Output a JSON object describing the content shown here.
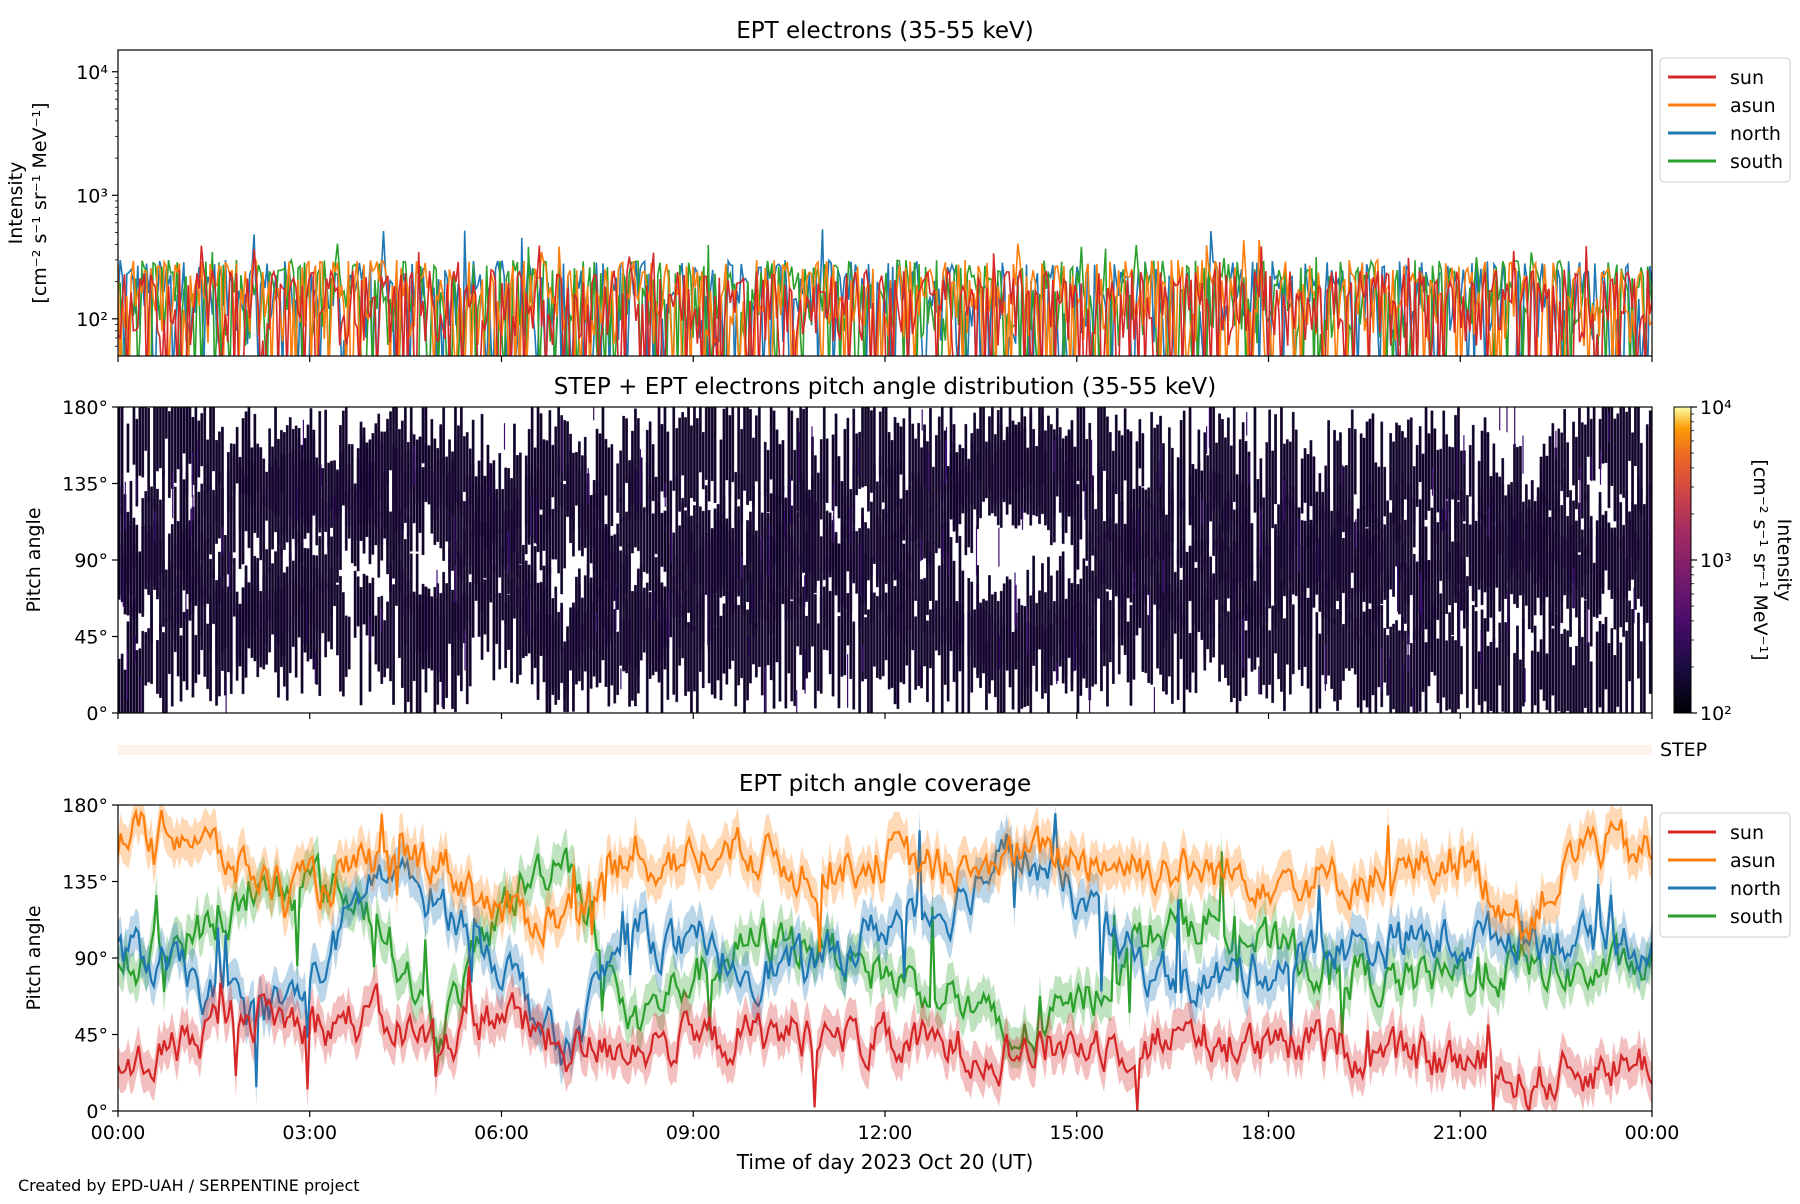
{
  "figure": {
    "credit": "Created by EPD-UAH / SERPENTINE project",
    "xlabel": "Time of day 2023 Oct 20 (UT)",
    "xticks": [
      "00:00",
      "03:00",
      "06:00",
      "09:00",
      "12:00",
      "15:00",
      "18:00",
      "21:00",
      "00:00"
    ]
  },
  "chart_data": [
    {
      "type": "line",
      "title": "EPT electrons (35-55 keV)",
      "ylabel_line1": "Intensity",
      "ylabel_line2": "[cm⁻² s⁻¹ sr⁻¹ MeV⁻¹]",
      "yscale": "log",
      "ylim": [
        50,
        15000
      ],
      "yticks": [
        {
          "label": "10²",
          "value": 100
        },
        {
          "label": "10³",
          "value": 1000
        },
        {
          "label": "10⁴",
          "value": 10000
        }
      ],
      "xlim_hours": [
        0,
        24
      ],
      "legend_position": "outside-right-top",
      "series": [
        {
          "name": "sun",
          "color": "#d62728",
          "typical_range": [
            60,
            250
          ],
          "peak": 400
        },
        {
          "name": "asun",
          "color": "#ff7f0e",
          "typical_range": [
            60,
            300
          ],
          "peak": 450
        },
        {
          "name": "north",
          "color": "#1f77b4",
          "typical_range": [
            60,
            300
          ],
          "peak": 550
        },
        {
          "name": "south",
          "color": "#2ca02c",
          "typical_range": [
            60,
            300
          ],
          "peak": 430
        }
      ]
    },
    {
      "type": "heatmap",
      "title": "STEP + EPT electrons pitch angle distribution (35-55 keV)",
      "ylabel": "Pitch angle",
      "ylim": [
        0,
        180
      ],
      "yticks": [
        "0°",
        "45°",
        "90°",
        "135°",
        "180°"
      ],
      "ytick_values": [
        0,
        45,
        90,
        135,
        180
      ],
      "xlim_hours": [
        0,
        24
      ],
      "colorscale": "inferno",
      "colorbar": {
        "scale": "log",
        "range": [
          100,
          10000
        ],
        "ticks": [
          {
            "label": "10²",
            "value": 100
          },
          {
            "label": "10³",
            "value": 1000
          },
          {
            "label": "10⁴",
            "value": 10000
          }
        ],
        "label_line1": "Intensity",
        "label_line2": "[cm⁻² s⁻¹ sr⁻¹ MeV⁻¹]"
      },
      "typical_intensity": 110
    },
    {
      "type": "bar",
      "label": "STEP",
      "color": "#fdf1ea"
    },
    {
      "type": "line",
      "title": "EPT pitch angle coverage",
      "ylabel": "Pitch angle",
      "ylim": [
        0,
        180
      ],
      "yticks": [
        "0°",
        "45°",
        "90°",
        "135°",
        "180°"
      ],
      "ytick_values": [
        0,
        45,
        90,
        135,
        180
      ],
      "xlim_hours": [
        0,
        24
      ],
      "legend_position": "outside-right-top",
      "series": [
        {
          "name": "sun",
          "color": "#d62728",
          "typical_range": [
            10,
            80
          ],
          "mean_profile": [
            20,
            40,
            60,
            50,
            55,
            40,
            60,
            35,
            40,
            40,
            45,
            45,
            40,
            38,
            35,
            40,
            40,
            45,
            35,
            40,
            30,
            30,
            15,
            25,
            30
          ]
        },
        {
          "name": "asun",
          "color": "#ff7f0e",
          "typical_range": [
            100,
            180
          ],
          "mean_profile": [
            160,
            165,
            140,
            130,
            145,
            150,
            115,
            115,
            145,
            150,
            150,
            140,
            150,
            140,
            150,
            150,
            145,
            140,
            140,
            135,
            140,
            150,
            110,
            160,
            150
          ]
        },
        {
          "name": "north",
          "color": "#1f77b4",
          "typical_range": [
            40,
            160
          ],
          "mean_profile": [
            95,
            80,
            55,
            70,
            140,
            125,
            90,
            30,
            110,
            90,
            85,
            85,
            110,
            120,
            155,
            125,
            85,
            75,
            85,
            95,
            100,
            100,
            105,
            100,
            100
          ]
        },
        {
          "name": "south",
          "color": "#2ca02c",
          "typical_range": [
            30,
            170
          ],
          "mean_profile": [
            85,
            100,
            120,
            135,
            120,
            45,
            120,
            155,
            50,
            80,
            100,
            100,
            80,
            70,
            40,
            60,
            100,
            115,
            95,
            85,
            75,
            80,
            85,
            80,
            85
          ]
        }
      ]
    }
  ]
}
